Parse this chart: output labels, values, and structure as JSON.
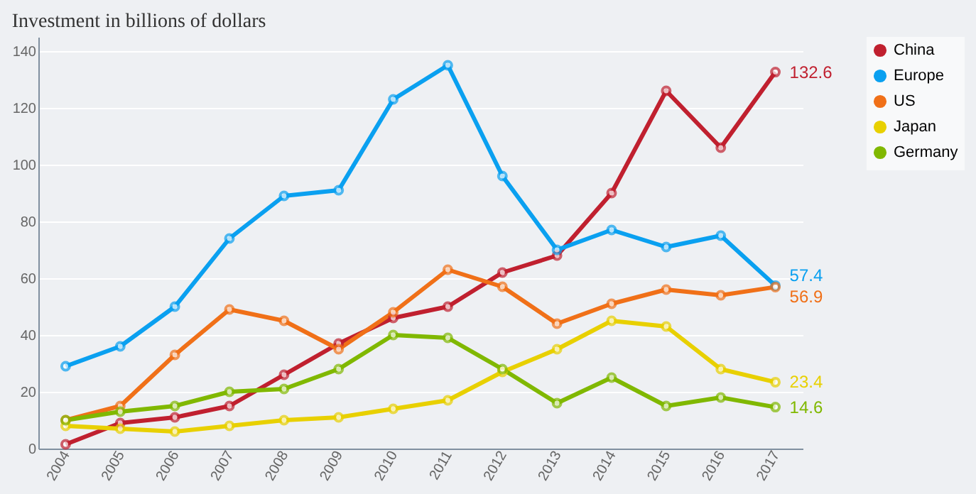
{
  "chart_data": {
    "type": "line",
    "title": "Investment in billions of dollars",
    "categories": [
      "2004",
      "2005",
      "2006",
      "2007",
      "2008",
      "2009",
      "2010",
      "2011",
      "2012",
      "2013",
      "2014",
      "2015",
      "2016",
      "2017"
    ],
    "series": [
      {
        "name": "China",
        "color": "#c0202f",
        "values": [
          1.5,
          9,
          11,
          15,
          26,
          37,
          46,
          50,
          62,
          68,
          90,
          126,
          106,
          132.6
        ],
        "value_labels": [
          null,
          null,
          null,
          null,
          null,
          null,
          null,
          null,
          null,
          null,
          null,
          null,
          null,
          "132.6"
        ]
      },
      {
        "name": "Europe",
        "color": "#0aa0f0",
        "values": [
          29,
          36,
          50,
          74,
          89,
          91,
          123,
          135,
          96,
          70,
          77,
          71,
          75,
          57.4
        ],
        "value_labels": [
          null,
          null,
          null,
          null,
          null,
          null,
          null,
          null,
          null,
          null,
          null,
          null,
          null,
          "57.4"
        ]
      },
      {
        "name": "US",
        "color": "#f07018",
        "values": [
          10,
          15,
          33,
          49,
          45,
          35,
          48,
          63,
          57,
          44,
          51,
          56,
          54,
          56.9
        ],
        "value_labels": [
          null,
          null,
          null,
          null,
          null,
          null,
          null,
          null,
          null,
          null,
          null,
          null,
          null,
          "56.9"
        ]
      },
      {
        "name": "Japan",
        "color": "#e8d000",
        "values": [
          8,
          7,
          6,
          8,
          10,
          11,
          14,
          17,
          27,
          35,
          45,
          43,
          28,
          23.4
        ],
        "value_labels": [
          null,
          null,
          null,
          null,
          null,
          null,
          null,
          null,
          null,
          null,
          null,
          null,
          null,
          "23.4"
        ]
      },
      {
        "name": "Germany",
        "color": "#80b800",
        "values": [
          10,
          13,
          15,
          20,
          21,
          28,
          40,
          39,
          28,
          16,
          25,
          15,
          18,
          14.6
        ],
        "value_labels": [
          null,
          null,
          null,
          null,
          null,
          null,
          null,
          null,
          null,
          null,
          null,
          null,
          null,
          "14.6"
        ]
      }
    ],
    "ylim": [
      0,
      145
    ],
    "yticks": [
      0,
      20,
      40,
      60,
      80,
      100,
      120,
      140
    ],
    "grid": "y",
    "legend": "top right",
    "marker": "circle",
    "line_style": "solid"
  }
}
